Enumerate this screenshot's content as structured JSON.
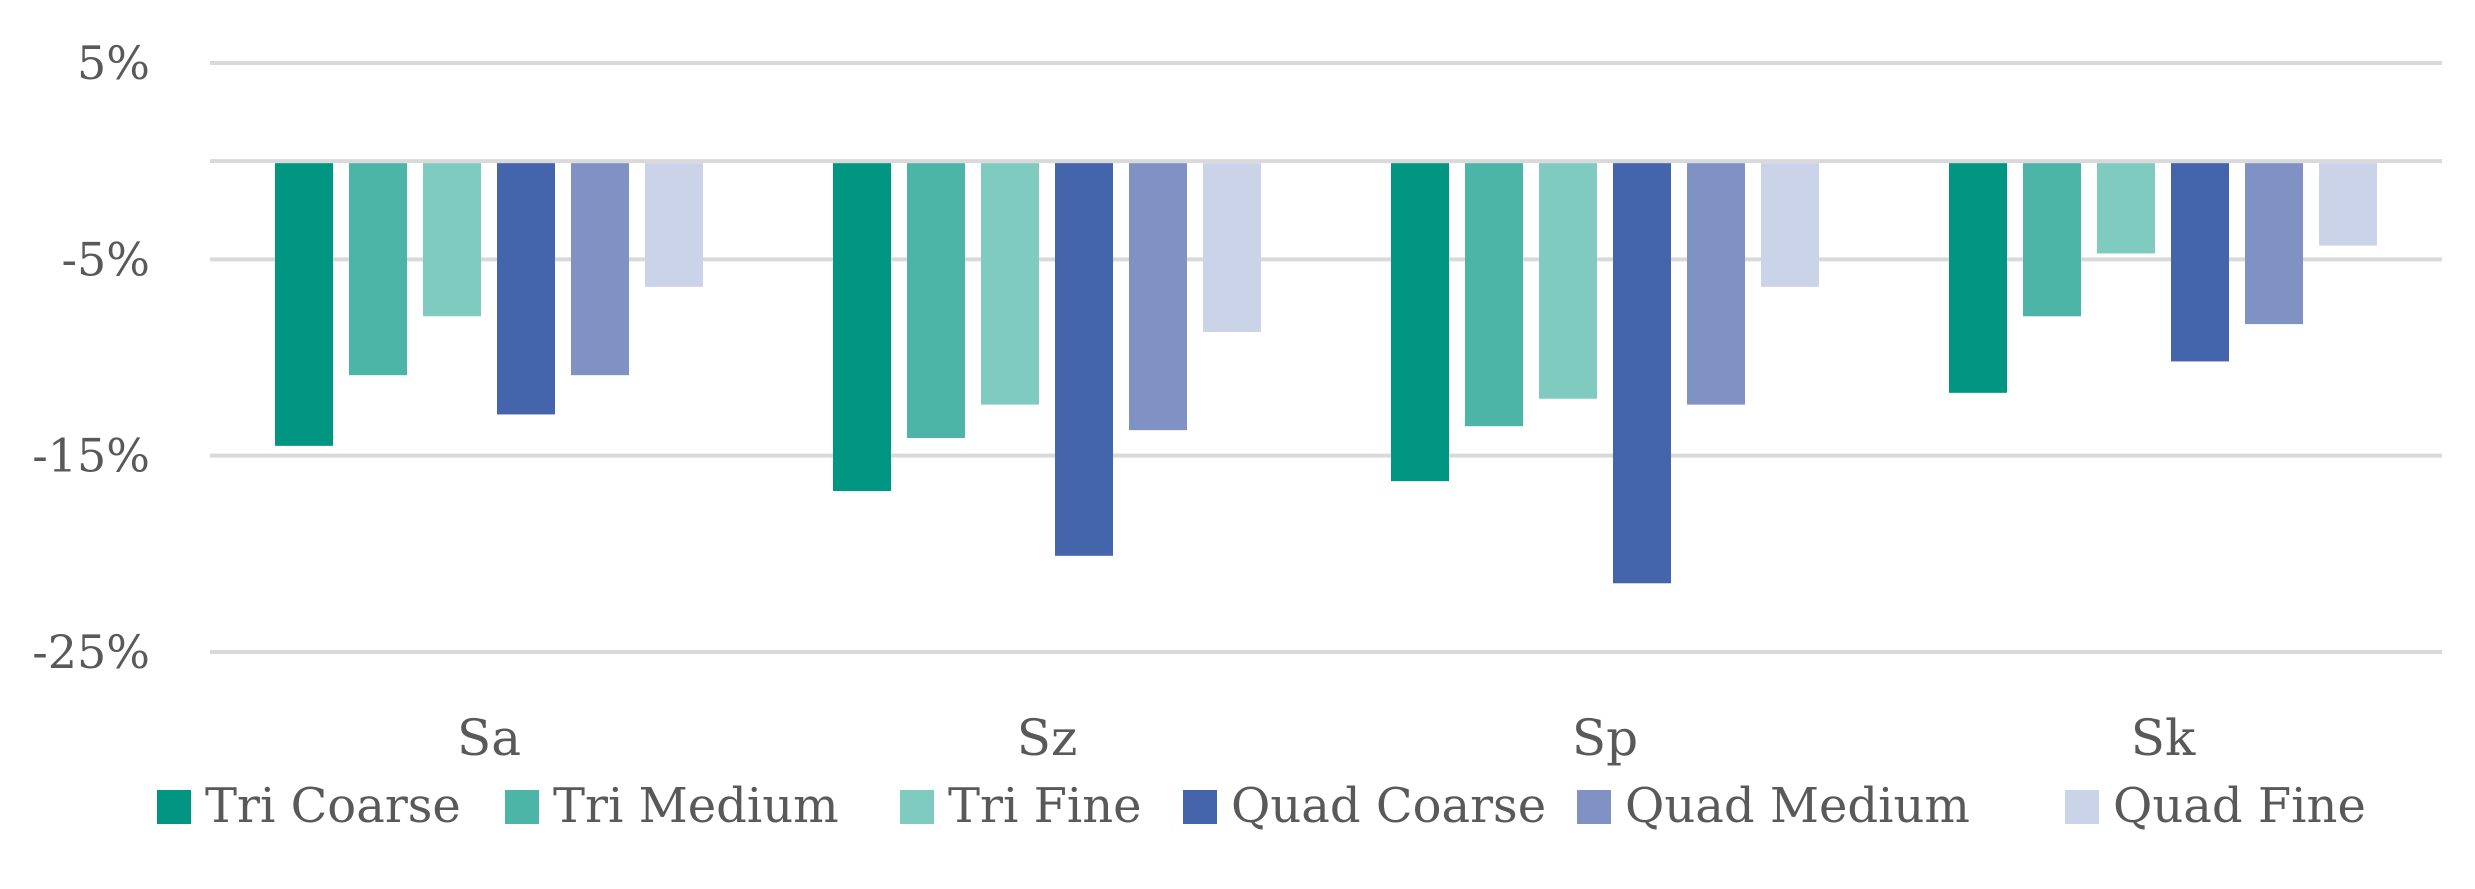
{
  "chart_data": {
    "type": "bar",
    "title": "",
    "xlabel": "",
    "ylabel": "",
    "categories": [
      "Sa",
      "Sz",
      "Sp",
      "Sk"
    ],
    "series": [
      {
        "name": "Tri Coarse",
        "color": "#009682",
        "values": [
          -14.5,
          -16.8,
          -16.3,
          -11.8
        ]
      },
      {
        "name": "Tri Medium",
        "color": "#4cb5a7",
        "values": [
          -10.9,
          -14.1,
          -13.5,
          -7.9
        ]
      },
      {
        "name": "Tri Fine",
        "color": "#7fcbc0",
        "values": [
          -7.9,
          -12.4,
          -12.1,
          -4.7
        ]
      },
      {
        "name": "Quad Coarse",
        "color": "#4464ac",
        "values": [
          -12.9,
          -20.1,
          -21.5,
          -10.2
        ]
      },
      {
        "name": "Quad Medium",
        "color": "#7f92c3",
        "values": [
          -10.9,
          -13.7,
          -12.4,
          -8.3
        ]
      },
      {
        "name": "Quad Fine",
        "color": "#cbd3e8",
        "values": [
          -6.4,
          -8.7,
          -6.4,
          -4.3
        ]
      }
    ],
    "ylim": [
      -25,
      5
    ],
    "yticks": [
      5,
      -5,
      -15,
      -25
    ],
    "ytick_labels": [
      "5%",
      "-5%",
      "-15%",
      "-25%"
    ],
    "grid": true,
    "legend_position": "bottom"
  }
}
